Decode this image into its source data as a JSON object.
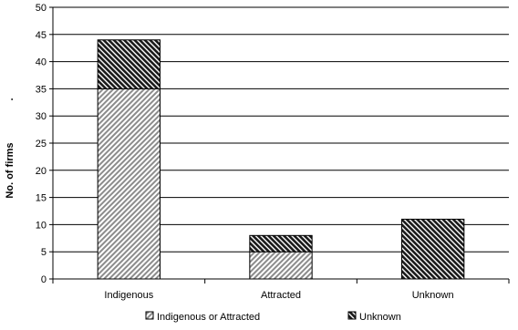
{
  "chart_data": {
    "type": "bar",
    "stacked": true,
    "categories": [
      "Indigenous",
      "Attracted",
      "Unknown"
    ],
    "series": [
      {
        "name": "Indigenous or Attracted",
        "values": [
          35,
          5,
          0
        ],
        "pattern": "light-diagonal-hatch",
        "color": "#8c8c8c"
      },
      {
        "name": "Unknown",
        "values": [
          9,
          3,
          11
        ],
        "pattern": "dark-diagonal-hatch",
        "color": "#1a1a1a"
      }
    ],
    "ylabel": "No. of firms",
    "ylabel_suffix": ".",
    "ylim": [
      0,
      50
    ],
    "yticks": [
      0,
      5,
      10,
      15,
      20,
      25,
      30,
      35,
      40,
      45,
      50
    ],
    "grid": true,
    "legend_position": "bottom"
  }
}
